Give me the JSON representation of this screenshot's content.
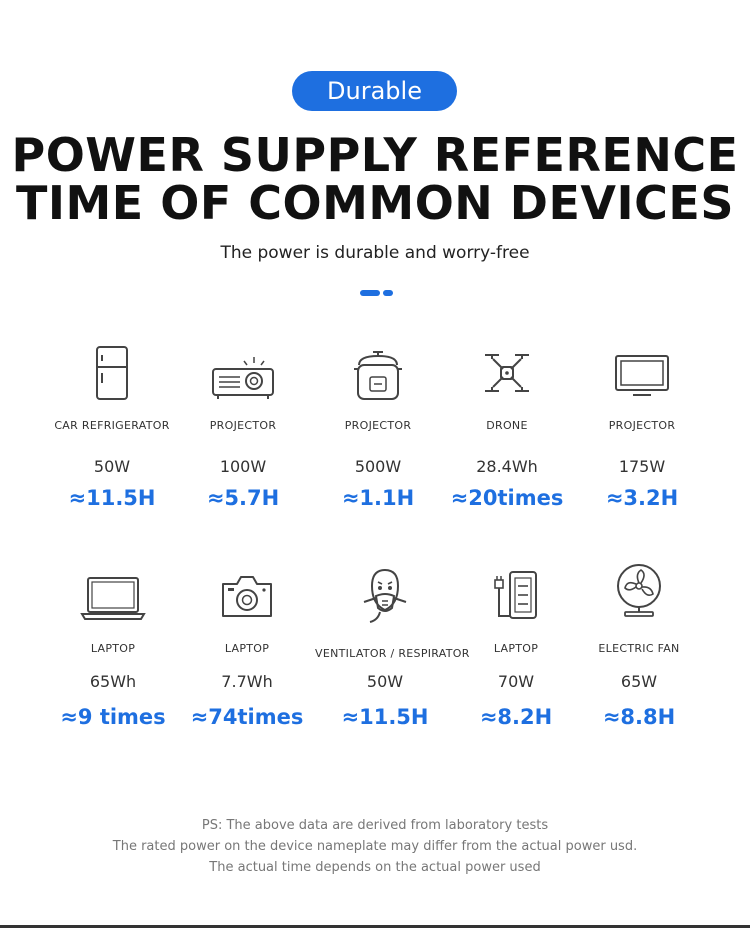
{
  "badge": "Durable",
  "title_line1": "POWER SUPPLY REFERENCE",
  "title_line2": "TIME OF COMMON DEVICES",
  "subtitle": "The power is durable and worry-free",
  "colors": {
    "accent": "#1e6fe0",
    "text": "#111111"
  },
  "row1": [
    {
      "icon": "refrigerator-icon",
      "name": "CAR REFRIGERATOR",
      "power": "50W",
      "time": "≈11.5H"
    },
    {
      "icon": "projector-icon",
      "name": "PROJECTOR",
      "power": "100W",
      "time": "≈5.7H"
    },
    {
      "icon": "rice-cooker-icon",
      "name": "PROJECTOR",
      "power": "500W",
      "time": "≈1.1H"
    },
    {
      "icon": "drone-icon",
      "name": "DRONE",
      "power": "28.4Wh",
      "time": "≈20times"
    },
    {
      "icon": "monitor-icon",
      "name": "PROJECTOR",
      "power": "175W",
      "time": "≈3.2H"
    }
  ],
  "row2": [
    {
      "icon": "laptop-icon",
      "name": "LAPTOP",
      "power": "65Wh",
      "time": "≈9 times"
    },
    {
      "icon": "camera-icon",
      "name": "LAPTOP",
      "power": "7.7Wh",
      "time": "≈74times"
    },
    {
      "icon": "respirator-icon",
      "name": "VENTILATOR / RESPIRATOR",
      "power": "50W",
      "time": "≈11.5H"
    },
    {
      "icon": "phone-charger-icon",
      "name": "LAPTOP",
      "power": "70W",
      "time": "≈8.2H"
    },
    {
      "icon": "electric-fan-icon",
      "name": "ELECTRIC FAN",
      "power": "65W",
      "time": "≈8.8H"
    }
  ],
  "notes": [
    "PS: The above data are derived from laboratory tests",
    "The rated power on the device nameplate may differ from the actual power usd.",
    "The actual time depends on the actual power used"
  ]
}
